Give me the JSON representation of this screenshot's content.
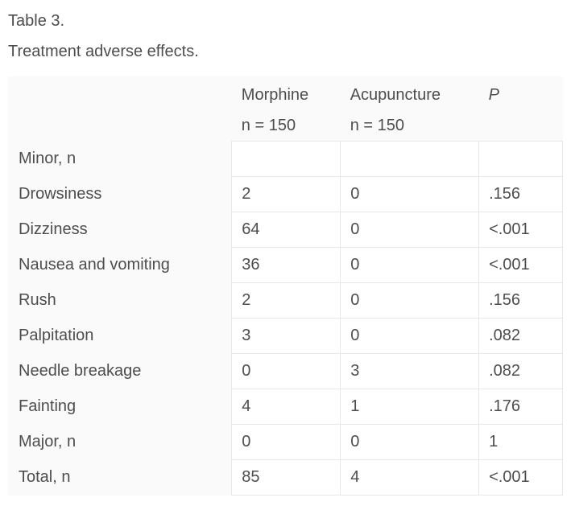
{
  "caption": {
    "title": "Table 3.",
    "subtitle": "Treatment adverse effects."
  },
  "table": {
    "columns": [
      {
        "label": "",
        "sub": ""
      },
      {
        "label": "Morphine",
        "sub": "n = 150"
      },
      {
        "label": "Acupuncture",
        "sub": "n = 150"
      },
      {
        "label": "P",
        "sub": ""
      }
    ],
    "rows": [
      {
        "label": "Minor, n",
        "morphine": "",
        "acupuncture": "",
        "p": ""
      },
      {
        "label": "Drowsiness",
        "morphine": "2",
        "acupuncture": "0",
        "p": ".156"
      },
      {
        "label": "Dizziness",
        "morphine": "64",
        "acupuncture": "0",
        "p": "<.001"
      },
      {
        "label": "Nausea and vomiting",
        "morphine": "36",
        "acupuncture": "0",
        "p": "<.001"
      },
      {
        "label": "Rush",
        "morphine": "2",
        "acupuncture": "0",
        "p": ".156"
      },
      {
        "label": "Palpitation",
        "morphine": "3",
        "acupuncture": "0",
        "p": ".082"
      },
      {
        "label": "Needle breakage",
        "morphine": "0",
        "acupuncture": "3",
        "p": ".082"
      },
      {
        "label": "Fainting",
        "morphine": "4",
        "acupuncture": "1",
        "p": ".176"
      },
      {
        "label": "Major, n",
        "morphine": "0",
        "acupuncture": "0",
        "p": "1"
      },
      {
        "label": "Total, n",
        "morphine": "85",
        "acupuncture": "4",
        "p": "<.001"
      }
    ]
  },
  "colors": {
    "text": "#4d4d4d",
    "table_background": "#fafafa",
    "cell_background": "#ffffff",
    "cell_border": "#e8e8e8",
    "page_background": "#ffffff"
  }
}
